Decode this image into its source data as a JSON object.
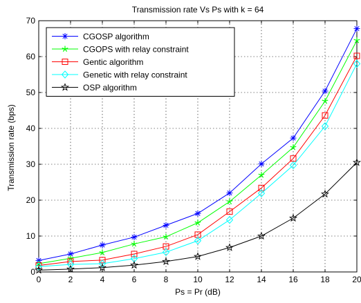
{
  "chart_data": {
    "type": "line",
    "title": "Transmission rate Vs Ps with k = 64",
    "xlabel": "Ps = Pr (dB)",
    "ylabel": "Transmission rate (bps)",
    "xlim": [
      0,
      20
    ],
    "ylim": [
      0,
      70
    ],
    "xticks": [
      0,
      2,
      4,
      6,
      8,
      10,
      12,
      14,
      16,
      18,
      20
    ],
    "yticks": [
      0,
      10,
      20,
      30,
      40,
      50,
      60,
      70
    ],
    "grid": true,
    "legend_position": "top-left",
    "x": [
      0,
      2,
      4,
      6,
      8,
      10,
      12,
      14,
      16,
      18,
      20
    ],
    "series": [
      {
        "name": "CGOSP algorithm",
        "color": "#0000ff",
        "marker": "asterisk",
        "values": [
          3.2,
          5.0,
          7.5,
          9.7,
          13.0,
          16.3,
          22.0,
          30.1,
          37.3,
          50.4,
          67.8
        ]
      },
      {
        "name": "CGOPS with relay constraint",
        "color": "#00ff00",
        "marker": "star",
        "values": [
          2.3,
          3.8,
          5.4,
          7.8,
          9.8,
          13.7,
          19.6,
          27.0,
          34.7,
          47.6,
          64.5
        ]
      },
      {
        "name": "Gentic algorithm",
        "color": "#ff0000",
        "marker": "square",
        "values": [
          1.8,
          2.9,
          3.3,
          5.0,
          7.1,
          10.4,
          16.8,
          23.4,
          31.6,
          43.6,
          60.2
        ]
      },
      {
        "name": "Genetic with relay constraint",
        "color": "#00ffff",
        "marker": "diamond",
        "values": [
          1.5,
          2.1,
          2.3,
          3.7,
          5.5,
          8.7,
          14.5,
          21.9,
          29.7,
          40.6,
          58.0
        ]
      },
      {
        "name": "OSP algorithm",
        "color": "#000000",
        "marker": "pentagram",
        "values": [
          0.5,
          0.8,
          1.2,
          1.9,
          2.9,
          4.3,
          6.8,
          10.0,
          15.0,
          21.7,
          30.5
        ]
      }
    ]
  }
}
